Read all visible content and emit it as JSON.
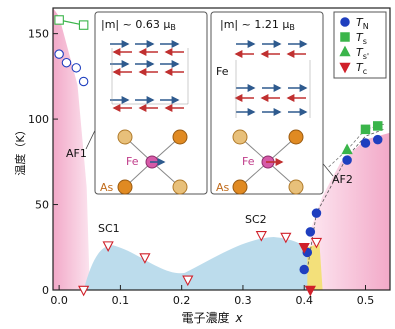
{
  "chart_data": {
    "type": "scatter",
    "xlabel": "電子濃度",
    "xvar": "x",
    "ylabel": "温度（K）",
    "xlim": [
      -0.01,
      0.54
    ],
    "ylim": [
      0,
      165
    ],
    "xticks": [
      "0.0",
      "0.1",
      "0.2",
      "0.3",
      "0.4",
      "0.5"
    ],
    "xtick_values": [
      0.0,
      0.1,
      0.2,
      0.3,
      0.4,
      0.5
    ],
    "yticks": [
      "0",
      "50",
      "100",
      "150"
    ],
    "ytick_values": [
      0,
      50,
      100,
      150
    ],
    "grid": false,
    "legend_position": "top-right",
    "legend": [
      {
        "sym": "T",
        "sub": "N",
        "marker": "circle",
        "color": "#1f3fbf"
      },
      {
        "sym": "T",
        "sub": "s",
        "marker": "square",
        "color": "#3ab54a"
      },
      {
        "sym": "T",
        "sub": "s'",
        "marker": "triangle",
        "color": "#3ab54a"
      },
      {
        "sym": "T",
        "sub": "c",
        "marker": "triangle-down",
        "color": "#d0202a"
      }
    ],
    "series": [
      {
        "key": "TN_open",
        "marker": "circle",
        "color": "#1f3fbf",
        "filled": false,
        "points": [
          [
            0.0,
            138
          ],
          [
            0.012,
            133
          ],
          [
            0.028,
            130
          ],
          [
            0.04,
            122
          ]
        ]
      },
      {
        "key": "TS_open",
        "marker": "square",
        "color": "#3ab54a",
        "filled": false,
        "points": [
          [
            0.0,
            158
          ],
          [
            0.04,
            155
          ]
        ]
      },
      {
        "key": "TC_open",
        "marker": "triangle-down",
        "color": "#d0202a",
        "filled": false,
        "points": [
          [
            0.04,
            0
          ],
          [
            0.08,
            26
          ],
          [
            0.14,
            19
          ],
          [
            0.21,
            6
          ],
          [
            0.33,
            32
          ],
          [
            0.37,
            31
          ],
          [
            0.42,
            28
          ]
        ]
      },
      {
        "key": "TN",
        "marker": "circle",
        "color": "#1f3fbf",
        "filled": true,
        "points": [
          [
            0.4,
            12
          ],
          [
            0.405,
            22
          ],
          [
            0.41,
            34
          ],
          [
            0.42,
            45
          ],
          [
            0.47,
            76
          ],
          [
            0.5,
            86
          ],
          [
            0.52,
            88
          ]
        ]
      },
      {
        "key": "TS",
        "marker": "square",
        "color": "#3ab54a",
        "filled": true,
        "points": [
          [
            0.5,
            94
          ],
          [
            0.52,
            96
          ]
        ]
      },
      {
        "key": "TS2",
        "marker": "triangle",
        "color": "#3ab54a",
        "filled": true,
        "points": [
          [
            0.47,
            82
          ]
        ]
      },
      {
        "key": "TC",
        "marker": "triangle-down",
        "color": "#d0202a",
        "filled": true,
        "points": [
          [
            0.4,
            25
          ],
          [
            0.41,
            0
          ]
        ]
      }
    ],
    "regions": [
      {
        "label": "AF1",
        "color": "#f6c6dc"
      },
      {
        "label": "SC1",
        "color": "#bcdcec"
      },
      {
        "label": "SC2",
        "color": "#bcdcec"
      },
      {
        "label": "AF2",
        "color": "#f6c6dc"
      }
    ]
  },
  "insets": [
    {
      "moment": "|m| ~ 0.63 μ",
      "unit": "B",
      "fe_label": "Fe",
      "as_label": "As"
    },
    {
      "moment": "|m| ~ 1.21 μ",
      "unit": "B",
      "fe_label": "Fe",
      "fe_label2": "Fe",
      "as_label": "As"
    }
  ]
}
